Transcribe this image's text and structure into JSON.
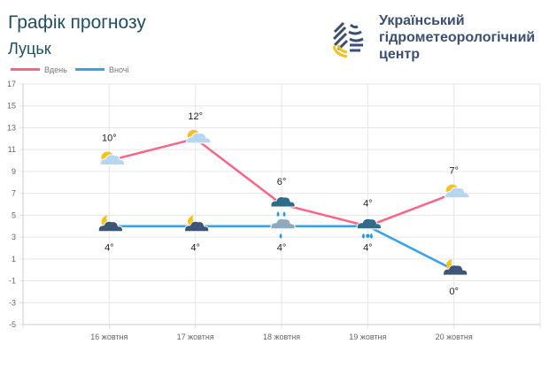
{
  "header": {
    "title": "Графік прогнозу",
    "city": "Луцьк",
    "org_lines": [
      "Український",
      "гідрометеорологічний",
      "центр"
    ]
  },
  "chart_data": {
    "type": "line",
    "categories": [
      "16 жовтня",
      "17 жовтня",
      "18 жовтня",
      "19 жовтня",
      "20 жовтня"
    ],
    "series": [
      {
        "name": "Вдень",
        "color": "#ff6384",
        "values": [
          10,
          12,
          6,
          4,
          7
        ],
        "icons": [
          "sun-cloud",
          "sun-cloud",
          "rain-cloud",
          "sleet-cloud",
          "sun-cloud"
        ]
      },
      {
        "name": "Вночі",
        "color": "#36a2eb",
        "values": [
          4,
          4,
          4,
          4,
          0
        ],
        "icons": [
          "moon-cloud",
          "moon-cloud",
          "light-rain-cloud",
          "sleet-cloud",
          "moon-cloud"
        ]
      }
    ],
    "ylim": [
      -5,
      17
    ],
    "yticks": [
      17,
      15,
      13,
      11,
      9,
      7,
      5,
      3,
      1,
      -1,
      -3,
      -5
    ],
    "value_suffix": "°",
    "grid": true,
    "legend": "top-left"
  }
}
